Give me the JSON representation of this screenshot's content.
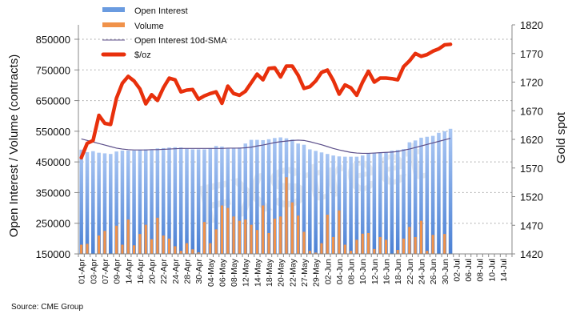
{
  "chart_data": {
    "type": "bar",
    "title": "",
    "ylabel": "Open Interest / Volume (contracts)",
    "y2label": "Gold spot",
    "ylim": [
      150000,
      850000
    ],
    "y2lim": [
      1420,
      1820
    ],
    "yticks": [
      150000,
      250000,
      350000,
      450000,
      550000,
      650000,
      750000,
      850000
    ],
    "y2ticks": [
      1420,
      1470,
      1520,
      1570,
      1620,
      1670,
      1720,
      1770,
      1820
    ],
    "grid": true,
    "legend_position": "top-left",
    "x_tick_labels": [
      "01-Apr",
      "03-Apr",
      "07-Apr",
      "09-Apr",
      "14-Apr",
      "16-Apr",
      "20-Apr",
      "22-Apr",
      "24-Apr",
      "28-Apr",
      "30-Apr",
      "04-May",
      "06-May",
      "08-May",
      "12-May",
      "14-May",
      "18-May",
      "20-May",
      "22-May",
      "27-May",
      "29-May",
      "02-Jun",
      "04-Jun",
      "08-Jun",
      "10-Jun",
      "12-Jun",
      "16-Jun",
      "18-Jun",
      "22-Jun",
      "24-Jun",
      "26-Jun",
      "30-Jun",
      "02-Jul",
      "06-Jul",
      "08-Jul",
      "10-Jul",
      "14-Jul"
    ],
    "total_slots": 74,
    "series": [
      {
        "name": "Open Interest",
        "type": "bar",
        "axis": "left",
        "color": "#6a9be0",
        "values": [
          490000,
          482000,
          485000,
          480000,
          478000,
          476000,
          484000,
          487000,
          487000,
          487000,
          489000,
          491000,
          490000,
          494000,
          495000,
          497000,
          498000,
          497000,
          493000,
          491000,
          491000,
          491000,
          495000,
          502000,
          500000,
          496000,
          496000,
          497000,
          510000,
          522000,
          522000,
          521000,
          524000,
          528000,
          530000,
          527000,
          523000,
          510000,
          506000,
          491000,
          486000,
          481000,
          476000,
          471000,
          468000,
          467000,
          467000,
          467000,
          471000,
          478000,
          480000,
          481000,
          482000,
          487000,
          489000,
          492000,
          514000,
          520000,
          529000,
          532000,
          535000,
          545000,
          550000,
          558000
        ]
      },
      {
        "name": "Volume",
        "type": "bar",
        "axis": "left",
        "color": "#f0924a",
        "values": [
          180000,
          183000,
          150000,
          210000,
          225000,
          150000,
          242000,
          180000,
          262000,
          178000,
          215000,
          245000,
          198000,
          268000,
          210000,
          200000,
          175000,
          160000,
          185000,
          165000,
          155000,
          254000,
          185000,
          230000,
          308000,
          300000,
          272000,
          258000,
          262000,
          245000,
          228000,
          308000,
          218000,
          265000,
          272000,
          400000,
          318000,
          275000,
          222000,
          160000,
          154000,
          185000,
          278000,
          205000,
          292000,
          180000,
          160000,
          196000,
          216000,
          218000,
          166000,
          205000,
          196000,
          150000,
          163000,
          200000,
          238000,
          205000,
          258000,
          160000,
          212000,
          150000,
          215000,
          150000
        ]
      },
      {
        "name": "Open Interest 10d-SMA",
        "type": "line",
        "axis": "left",
        "color": "#5c4f8a",
        "values": [
          525000,
          520000,
          515000,
          510000,
          505000,
          500000,
          495000,
          492000,
          490000,
          489000,
          489000,
          489000,
          490000,
          490000,
          491000,
          492000,
          493000,
          494000,
          494000,
          494000,
          494000,
          494000,
          494000,
          494000,
          494000,
          495000,
          495000,
          495000,
          496000,
          498000,
          502000,
          505000,
          509000,
          513000,
          516000,
          518000,
          520000,
          521000,
          520000,
          516000,
          511000,
          506000,
          500000,
          494000,
          489000,
          485000,
          481000,
          479000,
          478000,
          478000,
          479000,
          480000,
          481000,
          482000,
          484000,
          488000,
          492000,
          497000,
          502000,
          507000,
          512000,
          517000,
          522000,
          527000
        ]
      },
      {
        "name": "$/oz",
        "type": "line",
        "axis": "right",
        "color": "#e8300c",
        "values": [
          1588,
          1613,
          1618,
          1662,
          1648,
          1646,
          1692,
          1718,
          1730,
          1722,
          1708,
          1682,
          1698,
          1688,
          1710,
          1727,
          1724,
          1703,
          1706,
          1707,
          1690,
          1696,
          1700,
          1703,
          1683,
          1713,
          1700,
          1697,
          1704,
          1719,
          1734,
          1724,
          1744,
          1745,
          1729,
          1748,
          1748,
          1732,
          1709,
          1712,
          1722,
          1737,
          1741,
          1723,
          1699,
          1715,
          1710,
          1697,
          1720,
          1739,
          1720,
          1727,
          1727,
          1726,
          1724,
          1747,
          1757,
          1770,
          1765,
          1768,
          1774,
          1778,
          1785,
          1786
        ]
      }
    ]
  },
  "legend": [
    {
      "label": "Open Interest",
      "swatch": "bar-blue"
    },
    {
      "label": "Volume",
      "swatch": "bar-orange"
    },
    {
      "label": "Open Interest 10d-SMA",
      "swatch": "thin-line"
    },
    {
      "label": "$/oz",
      "swatch": "thick-line"
    }
  ],
  "watermark": "FXStreet",
  "source": "Source: CME Group"
}
